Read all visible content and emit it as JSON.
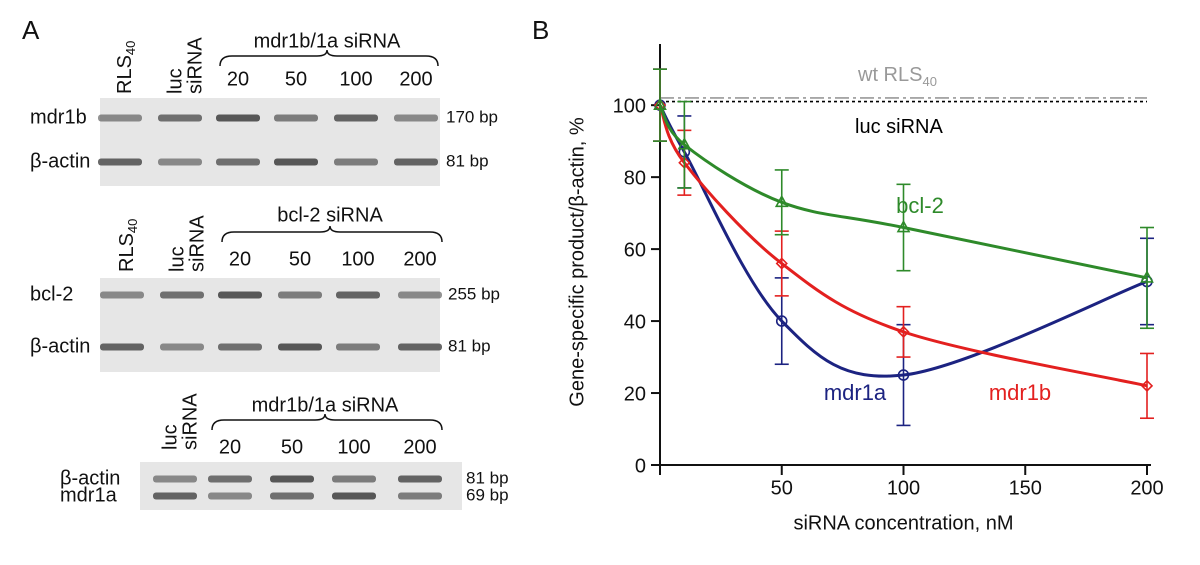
{
  "panel_a": {
    "label": "A",
    "gels": [
      {
        "controls": [
          {
            "text": "RLS",
            "sub": "40"
          },
          {
            "lines": [
              "luc",
              "siRNA"
            ]
          }
        ],
        "group": "mdr1b/1a siRNA",
        "concentrations": [
          20,
          50,
          100,
          200
        ],
        "rows": [
          {
            "name": "mdr1b",
            "size": "170 bp"
          },
          {
            "name": "β-actin",
            "size": "81 bp"
          }
        ]
      },
      {
        "controls": [
          {
            "text": "RLS",
            "sub": "40"
          },
          {
            "lines": [
              "luc",
              "siRNA"
            ]
          }
        ],
        "group": "bcl-2 siRNA",
        "concentrations": [
          20,
          50,
          100,
          200
        ],
        "rows": [
          {
            "name": "bcl-2",
            "size": "255 bp"
          },
          {
            "name": "β-actin",
            "size": "81 bp"
          }
        ]
      },
      {
        "controls": [
          {
            "lines": [
              "luc",
              "siRNA"
            ]
          }
        ],
        "group": "mdr1b/1a siRNA",
        "concentrations": [
          20,
          50,
          100,
          200
        ],
        "rows": [
          {
            "name": "β-actin",
            "size": "81 bp"
          },
          {
            "name": "mdr1a",
            "size": "69 bp"
          }
        ]
      }
    ]
  },
  "chart_data": {
    "type": "line",
    "label": "B",
    "x_label": "siRNA concentration, nM",
    "y_label": "Gene-specific product/β-actin, %",
    "x": [
      0,
      10,
      50,
      100,
      200
    ],
    "xlim": [
      0,
      200
    ],
    "xticks": [
      50,
      100,
      150,
      200
    ],
    "ylim": [
      0,
      117
    ],
    "yticks": [
      0,
      20,
      40,
      60,
      80,
      100
    ],
    "series": [
      {
        "name": "mdr1a",
        "color": "#1c2381",
        "marker": "circle",
        "values": [
          100,
          87,
          40,
          25,
          51
        ],
        "errors": [
          10,
          10,
          12,
          14,
          12
        ]
      },
      {
        "name": "mdr1b",
        "color": "#e3201f",
        "marker": "diamond",
        "values": [
          100,
          84,
          56,
          37,
          22
        ],
        "errors": [
          10,
          9,
          9,
          7,
          9
        ]
      },
      {
        "name": "bcl-2",
        "color": "#2e8a2a",
        "marker": "triangle",
        "values": [
          100,
          89,
          73,
          66,
          52
        ],
        "errors": [
          10,
          12,
          9,
          12,
          14
        ]
      }
    ],
    "reference_lines": [
      {
        "label": "wt RLS",
        "sub": "40",
        "value": 102,
        "style": "dash-dot",
        "color": "#999999"
      },
      {
        "label": "luc siRNA",
        "value": 101,
        "style": "dotted",
        "color": "#000000"
      }
    ]
  }
}
